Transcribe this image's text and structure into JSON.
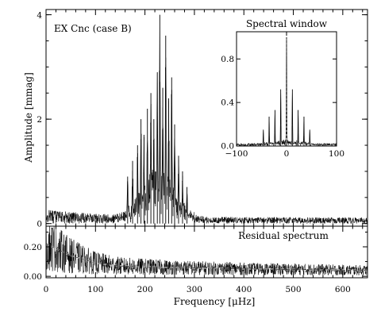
{
  "chart_data": [
    {
      "type": "line",
      "panel": "main",
      "title": "EX Cnc (case B)",
      "xlabel": "Frequency [μHz]",
      "ylabel": "Amplitude [mmag]",
      "xlim": [
        0,
        650
      ],
      "ylim": [
        -0.05,
        4.1
      ],
      "x_ticks": [
        0,
        100,
        200,
        300,
        400,
        500,
        600
      ],
      "y_ticks": [
        {
          "value": 0,
          "label": "0"
        },
        {
          "value": 2,
          "label": "2"
        },
        {
          "value": 4,
          "label": "4"
        }
      ],
      "noise_level": 0.12,
      "peaks": [
        {
          "x": 165,
          "y": 0.9
        },
        {
          "x": 175,
          "y": 1.2
        },
        {
          "x": 185,
          "y": 1.5
        },
        {
          "x": 192,
          "y": 2.0
        },
        {
          "x": 198,
          "y": 1.7
        },
        {
          "x": 205,
          "y": 2.2
        },
        {
          "x": 212,
          "y": 2.5
        },
        {
          "x": 218,
          "y": 2.0
        },
        {
          "x": 225,
          "y": 2.9
        },
        {
          "x": 230,
          "y": 4.0
        },
        {
          "x": 236,
          "y": 2.6
        },
        {
          "x": 242,
          "y": 3.6
        },
        {
          "x": 248,
          "y": 2.4
        },
        {
          "x": 254,
          "y": 2.8
        },
        {
          "x": 260,
          "y": 1.9
        },
        {
          "x": 268,
          "y": 1.3
        },
        {
          "x": 276,
          "y": 1.0
        },
        {
          "x": 285,
          "y": 0.7
        }
      ]
    },
    {
      "type": "line",
      "panel": "inset",
      "title": "Spectral window",
      "xlim": [
        -100,
        100
      ],
      "ylim": [
        0,
        1.05
      ],
      "x_ticks": [
        {
          "value": -100,
          "label": "−100"
        },
        {
          "value": 0,
          "label": "0"
        },
        {
          "value": 100,
          "label": "100"
        }
      ],
      "y_ticks": [
        {
          "value": 0,
          "label": "0.0"
        },
        {
          "value": 0.4,
          "label": "0.4"
        },
        {
          "value": 0.8,
          "label": "0.8"
        }
      ],
      "peaks": [
        {
          "x": 0,
          "y": 1.0
        },
        {
          "x": -11.6,
          "y": 0.52
        },
        {
          "x": 11.6,
          "y": 0.52
        },
        {
          "x": -23.2,
          "y": 0.33
        },
        {
          "x": 23.2,
          "y": 0.33
        },
        {
          "x": -34.8,
          "y": 0.27
        },
        {
          "x": 34.8,
          "y": 0.27
        },
        {
          "x": -46.4,
          "y": 0.15
        },
        {
          "x": 46.4,
          "y": 0.15
        }
      ]
    },
    {
      "type": "line",
      "panel": "residual",
      "title": "Residual spectrum",
      "xlim": [
        0,
        650
      ],
      "ylim": [
        -0.01,
        0.34
      ],
      "y_ticks": [
        {
          "value": 0,
          "label": "0.00"
        },
        {
          "value": 0.2,
          "label": "0.20"
        }
      ],
      "envelope": [
        {
          "x": 0,
          "y": 0.22
        },
        {
          "x": 50,
          "y": 0.14
        },
        {
          "x": 100,
          "y": 0.09
        },
        {
          "x": 150,
          "y": 0.07
        },
        {
          "x": 250,
          "y": 0.06
        },
        {
          "x": 400,
          "y": 0.05
        },
        {
          "x": 550,
          "y": 0.045
        },
        {
          "x": 650,
          "y": 0.04
        }
      ]
    }
  ]
}
